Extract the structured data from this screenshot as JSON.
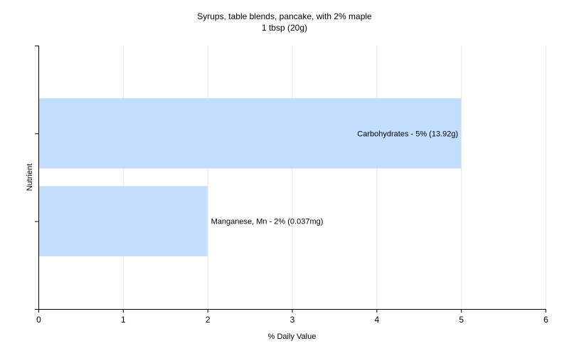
{
  "chart_data": {
    "type": "bar",
    "orientation": "horizontal",
    "title": "Syrups, table blends, pancake, with 2% maple",
    "subtitle": "1 tbsp (20g)",
    "xlabel": "% Daily Value",
    "ylabel": "Nutrient",
    "xlim": [
      0,
      6
    ],
    "xticks": [
      0,
      1,
      2,
      3,
      4,
      5,
      6
    ],
    "grid": true,
    "bars": [
      {
        "label": "Carbohydrates - 5% (13.92g)",
        "value": 5
      },
      {
        "label": "Manganese, Mn - 2% (0.037mg)",
        "value": 2
      }
    ],
    "colors": {
      "bar": "#c2deff",
      "grid": "#e6e6e6",
      "axis": "#000000"
    }
  }
}
